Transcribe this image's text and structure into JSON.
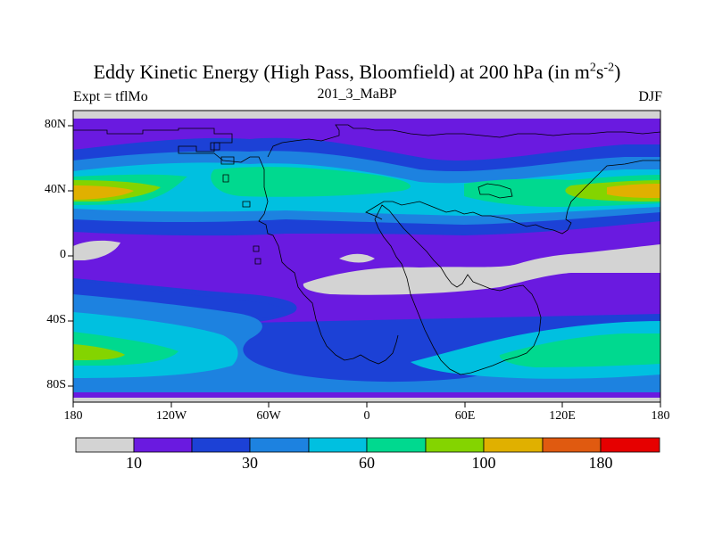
{
  "chart_data": {
    "type": "heatmap",
    "title": "Eddy Kinetic Energy (High Pass, Bloomfield) at 200 hPa (in m",
    "title_unit_sup1": "2",
    "title_unit_mid": "s",
    "title_unit_sup2": "-2",
    "title_close": ")",
    "left_label": "Expt = tflMo",
    "center_label": "201_3_MaBP",
    "right_label": "DJF",
    "x_ticks": [
      "180",
      "120W",
      "60W",
      "0",
      "60E",
      "120E",
      "180"
    ],
    "y_ticks": [
      "80N",
      "40N",
      "0",
      "40S",
      "80S"
    ],
    "xlim": [
      -180,
      180
    ],
    "ylim": [
      -90,
      90
    ],
    "colorbar": {
      "colors": [
        "#d3d3d3",
        "#6a1ae0",
        "#1c41d6",
        "#1d82e0",
        "#00c0e0",
        "#00d98f",
        "#84d400",
        "#e0b000",
        "#e05a10",
        "#e60000"
      ],
      "labels": [
        "10",
        "30",
        "60",
        "100",
        "180"
      ]
    }
  }
}
